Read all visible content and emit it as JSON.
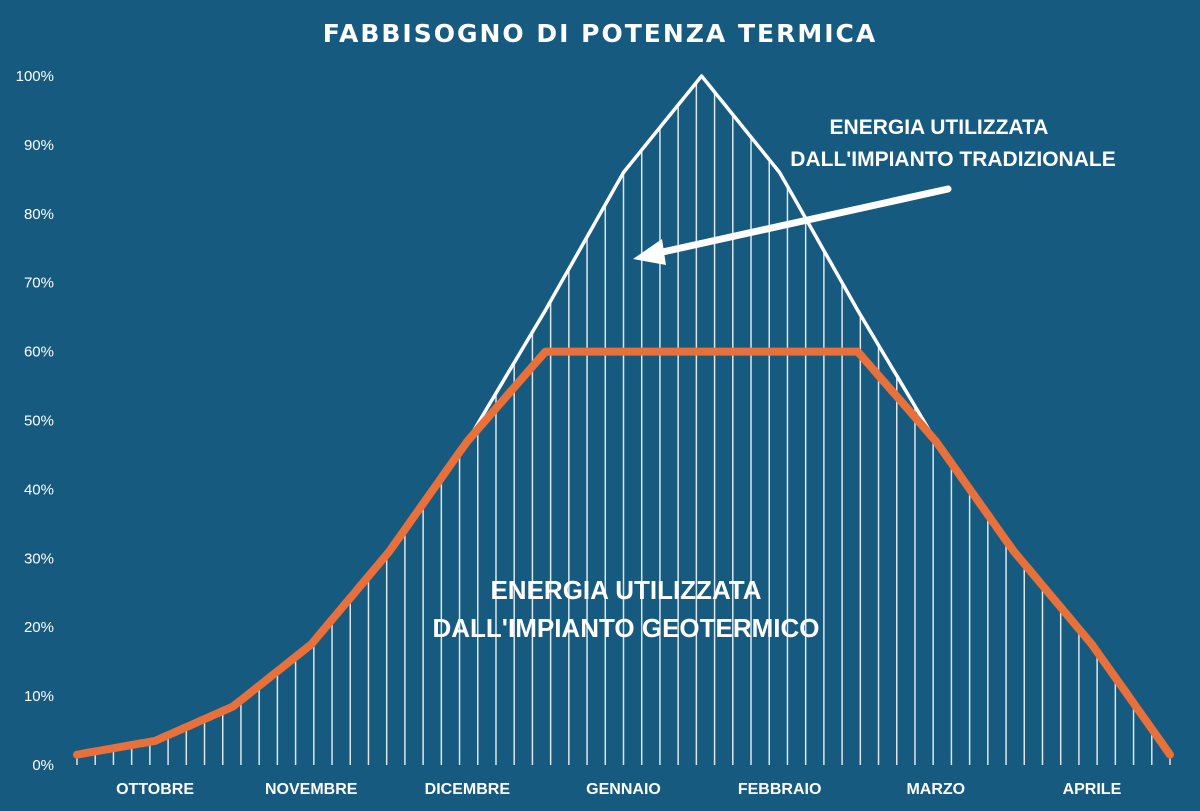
{
  "chart_data": {
    "type": "area",
    "title": "FABBISOGNO DI POTENZA TERMICA",
    "xlabel": "",
    "ylabel": "",
    "categories": [
      "OTTOBRE",
      "NOVEMBRE",
      "DICEMBRE",
      "GENNAIO",
      "FEBBRAIO",
      "MARZO",
      "APRILE"
    ],
    "y_ticks": [
      "0%",
      "10%",
      "20%",
      "30%",
      "40%",
      "50%",
      "60%",
      "70%",
      "80%",
      "90%",
      "100%"
    ],
    "ylim": [
      0,
      100
    ],
    "grid": false,
    "series": [
      {
        "color": "#ffffff",
        "x": [
          0.0,
          0.5,
          1.0,
          1.5,
          2.0,
          2.5,
          3.0,
          3.5,
          4.0,
          4.5,
          5.0,
          5.5,
          6.0,
          6.5,
          7.0
        ],
        "values": [
          1.5,
          3.5,
          8.5,
          17.5,
          31,
          47,
          66,
          86,
          100,
          86,
          66,
          47,
          31,
          17.5,
          1.5
        ]
      },
      {
        "color": "#e8703a",
        "x": [
          0.0,
          0.5,
          1.0,
          1.5,
          2.0,
          2.5,
          3.0,
          3.5,
          4.0,
          4.5,
          5.0,
          5.5,
          6.0,
          6.5,
          7.0
        ],
        "values": [
          1.5,
          3.5,
          8.5,
          17.5,
          31,
          47,
          60,
          60,
          60,
          60,
          60,
          47,
          31,
          17.5,
          1.5
        ]
      }
    ],
    "annotations": [
      {
        "lines": [
          "ENERGIA UTILIZZATA",
          "DALL'IMPIANTO TRADIZIONALE"
        ]
      },
      {
        "lines": [
          "ENERGIA UTILIZZATA",
          "DALL'IMPIANTO GEOTERMICO"
        ]
      }
    ]
  }
}
